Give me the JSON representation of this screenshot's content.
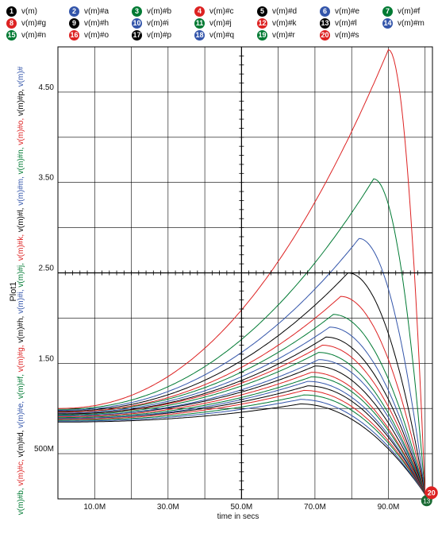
{
  "chart_data": {
    "type": "line",
    "title": "",
    "xlabel": "time in secs",
    "ylabel": "Plot1",
    "xlim": [
      0,
      102
    ],
    "ylim": [
      0,
      5.0
    ],
    "grid": true,
    "legend_position": "top",
    "x_ticks": [
      {
        "value": 10,
        "label": "10.0M"
      },
      {
        "value": 30,
        "label": "30.0M"
      },
      {
        "value": 50,
        "label": "50.0M"
      },
      {
        "value": 70,
        "label": "70.0M"
      },
      {
        "value": 90,
        "label": "90.0M"
      }
    ],
    "y_ticks": [
      {
        "value": 0.5,
        "label": "500M"
      },
      {
        "value": 1.5,
        "label": "1.50"
      },
      {
        "value": 2.5,
        "label": "2.50"
      },
      {
        "value": 3.5,
        "label": "3.50"
      },
      {
        "value": 4.5,
        "label": "4.50"
      }
    ],
    "end_value": 0.05,
    "series": [
      {
        "name": "v(m)",
        "index": "1",
        "color": "#000000",
        "start": 0.85,
        "peak": 1.05,
        "peak_x": 66
      },
      {
        "name": "v(m)#a",
        "index": "2",
        "color": "#3355aa",
        "start": 0.86,
        "peak": 1.1,
        "peak_x": 66
      },
      {
        "name": "v(m)#b",
        "index": "3",
        "color": "#007a33",
        "start": 0.87,
        "peak": 1.15,
        "peak_x": 67
      },
      {
        "name": "v(m)#c",
        "index": "4",
        "color": "#dd2222",
        "start": 0.88,
        "peak": 1.2,
        "peak_x": 67
      },
      {
        "name": "v(m)#d",
        "index": "5",
        "color": "#000000",
        "start": 0.89,
        "peak": 1.25,
        "peak_x": 68
      },
      {
        "name": "v(m)#e",
        "index": "6",
        "color": "#3355aa",
        "start": 0.89,
        "peak": 1.3,
        "peak_x": 68
      },
      {
        "name": "v(m)#f",
        "index": "7",
        "color": "#007a33",
        "start": 0.9,
        "peak": 1.35,
        "peak_x": 69
      },
      {
        "name": "v(m)#g",
        "index": "8",
        "color": "#dd2222",
        "start": 0.91,
        "peak": 1.4,
        "peak_x": 69
      },
      {
        "name": "v(m)#h",
        "index": "9",
        "color": "#000000",
        "start": 0.92,
        "peak": 1.47,
        "peak_x": 70
      },
      {
        "name": "v(m)#i",
        "index": "10",
        "color": "#3355aa",
        "start": 0.92,
        "peak": 1.54,
        "peak_x": 71
      },
      {
        "name": "v(m)#j",
        "index": "11",
        "color": "#007a33",
        "start": 0.93,
        "peak": 1.62,
        "peak_x": 71
      },
      {
        "name": "v(m)#k",
        "index": "12",
        "color": "#dd2222",
        "start": 0.94,
        "peak": 1.7,
        "peak_x": 72
      },
      {
        "name": "v(m)#l",
        "index": "13",
        "color": "#000000",
        "start": 0.94,
        "peak": 1.79,
        "peak_x": 73
      },
      {
        "name": "v(m)#m",
        "index": "14",
        "color": "#3355aa",
        "start": 0.95,
        "peak": 1.9,
        "peak_x": 74
      },
      {
        "name": "v(m)#n",
        "index": "15",
        "color": "#007a33",
        "start": 0.96,
        "peak": 2.04,
        "peak_x": 75
      },
      {
        "name": "v(m)#o",
        "index": "16",
        "color": "#dd2222",
        "start": 0.96,
        "peak": 2.24,
        "peak_x": 77
      },
      {
        "name": "v(m)#p",
        "index": "17",
        "color": "#000000",
        "start": 0.97,
        "peak": 2.5,
        "peak_x": 79
      },
      {
        "name": "v(m)#q",
        "index": "18",
        "color": "#3355aa",
        "start": 0.98,
        "peak": 2.88,
        "peak_x": 82
      },
      {
        "name": "v(m)#r",
        "index": "19",
        "color": "#007a33",
        "start": 0.99,
        "peak": 3.54,
        "peak_x": 86
      },
      {
        "name": "v(m)#s",
        "index": "20",
        "color": "#dd2222",
        "start": 1.0,
        "peak": 4.97,
        "peak_x": 90
      }
    ],
    "y_axis_series_text": "v(m)#b, v(m)#c, v(m)#d, v(m)#e, v(m)#f, v(m)#g, v(m)#h, v(m)#i, v(m)#j, v(m)#k, v(m)#l, v(m)#m, v(m)#n, v(m)#o, v(m)#p, v(m)#"
  }
}
